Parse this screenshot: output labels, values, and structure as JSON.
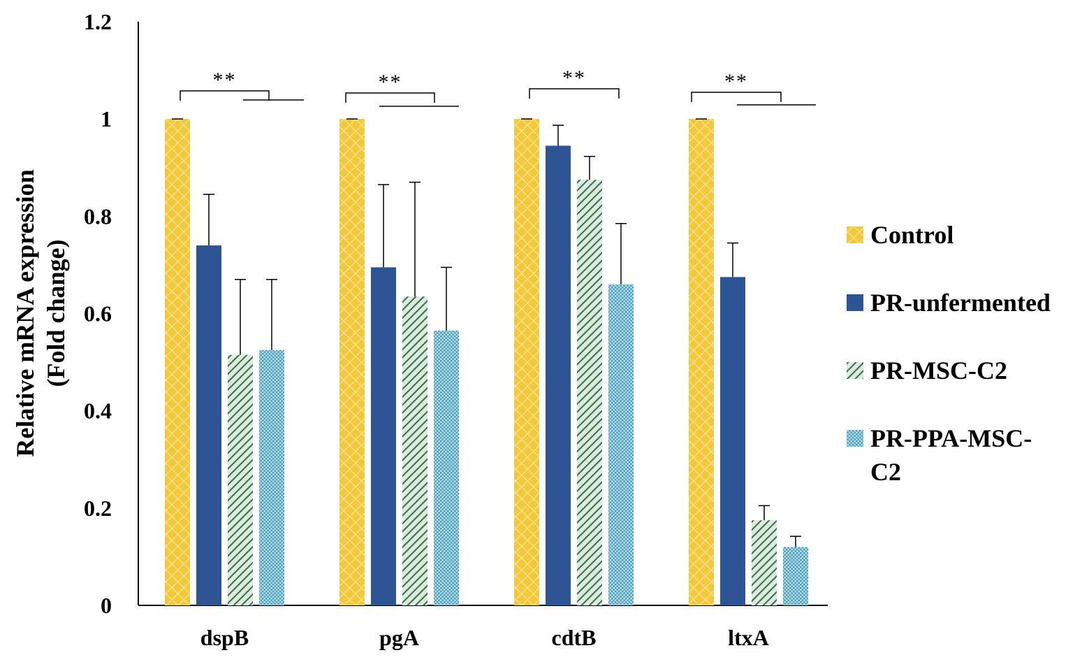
{
  "chart_data": {
    "type": "bar",
    "title": "",
    "xlabel": "",
    "ylabel_line1": "Relative mRNA expression",
    "ylabel_line2": "(Fold change)",
    "ylim": [
      0,
      1.2
    ],
    "yticks": [
      {
        "value": 0,
        "label": "0"
      },
      {
        "value": 0.2,
        "label": "0.2"
      },
      {
        "value": 0.4,
        "label": "0.4"
      },
      {
        "value": 0.6,
        "label": "0.6"
      },
      {
        "value": 0.8,
        "label": "0.8"
      },
      {
        "value": 1,
        "label": "1"
      },
      {
        "value": 1.2,
        "label": "1.2"
      }
    ],
    "categories": [
      "dspB",
      "pgA",
      "cdtB",
      "ltxA"
    ],
    "series": [
      {
        "name": "Control",
        "pattern": "control",
        "values": [
          1,
          1,
          1,
          1
        ],
        "errors": [
          0,
          0,
          0,
          0
        ]
      },
      {
        "name": "PR-unfermented",
        "pattern": "solid",
        "values": [
          0.74,
          0.695,
          0.945,
          0.675
        ],
        "errors": [
          0.105,
          0.17,
          0.042,
          0.07
        ]
      },
      {
        "name": "PR-MSC-C2",
        "pattern": "diag",
        "values": [
          0.515,
          0.635,
          0.875,
          0.175
        ],
        "errors": [
          0.155,
          0.235,
          0.048,
          0.03
        ]
      },
      {
        "name": "PR-PPA-MSC-C2",
        "pattern": "dots",
        "values": [
          0.525,
          0.565,
          0.66,
          0.12
        ],
        "errors": [
          0.145,
          0.13,
          0.125,
          0.022
        ]
      }
    ],
    "significance": [
      {
        "category": "dspB",
        "label": "**"
      },
      {
        "category": "pgA",
        "label": "**"
      },
      {
        "category": "cdtB",
        "label": "**"
      },
      {
        "category": "ltxA",
        "label": "**"
      }
    ],
    "legend": {
      "position": "right",
      "items": [
        {
          "line1": "Control",
          "line2": ""
        },
        {
          "line1": "PR-unfermented",
          "line2": ""
        },
        {
          "line1": "PR-MSC-C2",
          "line2": ""
        },
        {
          "line1": "PR-PPA-MSC-",
          "line2": "C2"
        }
      ]
    },
    "colors": {
      "control_fill": "#f1c93a",
      "control_hatch": "#fbe9a0",
      "solid": "#2d5596",
      "diag_bg": "#d9ecdd",
      "diag_stripe": "#3e6b52",
      "dots_bg": "#aee0ee",
      "dots_dot": "#4c97b3",
      "axis": "#000000"
    }
  }
}
